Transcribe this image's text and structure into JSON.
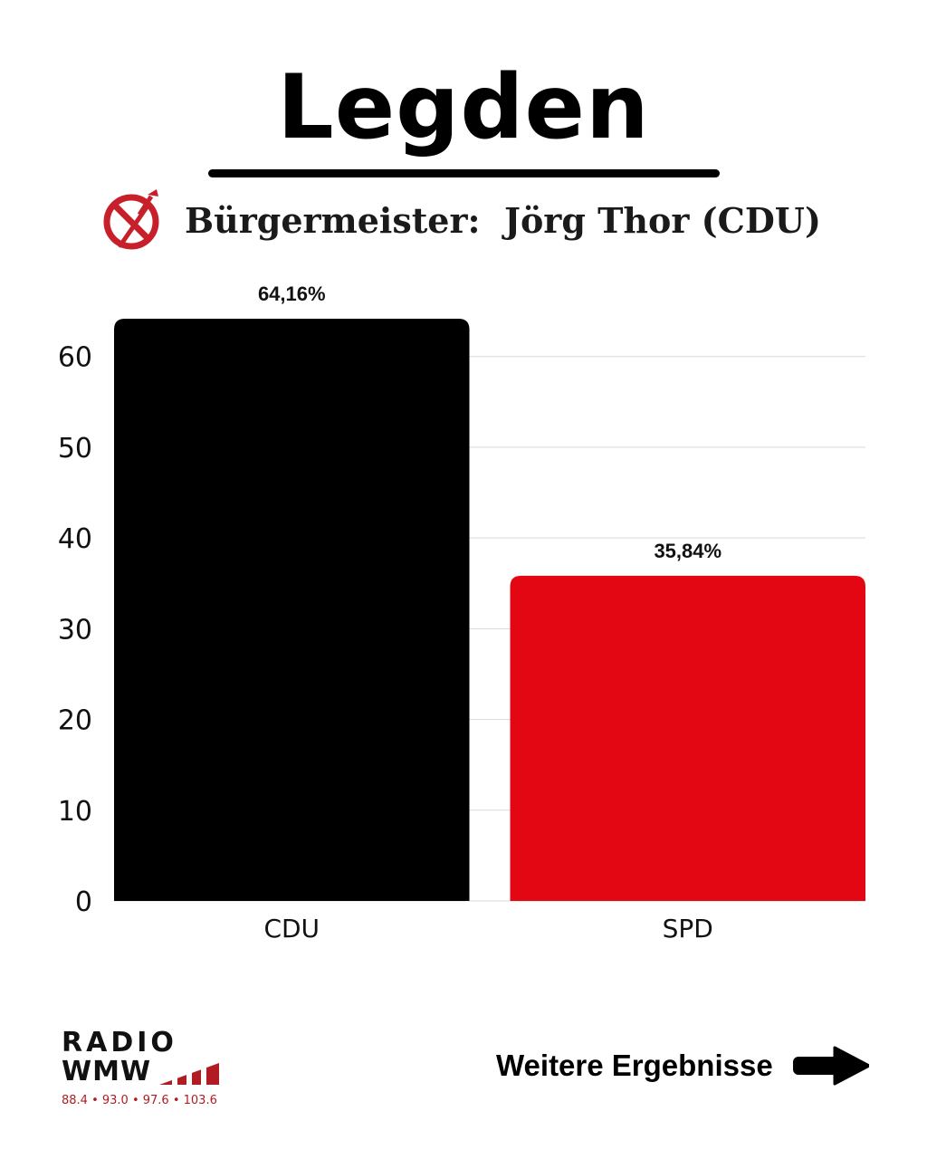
{
  "header": {
    "title": "Legden",
    "subtitle": "Bürgermeister:  Jörg Thor (CDU)",
    "ballot_icon": "ballot-cross-icon"
  },
  "chart_data": {
    "type": "bar",
    "title": "",
    "xlabel": "",
    "ylabel": "",
    "categories": [
      "CDU",
      "SPD"
    ],
    "values": [
      64.16,
      35.84
    ],
    "value_labels": [
      "64,16%",
      "35,84%"
    ],
    "colors": [
      "#000000",
      "#e30613"
    ],
    "ylim": [
      0,
      64.16
    ],
    "yticks": [
      0,
      10,
      20,
      30,
      40,
      50,
      60
    ],
    "grid": true,
    "legend": "none"
  },
  "footer": {
    "logo": {
      "line1": "RADIO",
      "line2": "WMW",
      "frequencies": "88.4 • 93.0 • 97.6 • 103.6",
      "accent_color": "#b01c22"
    },
    "more_results": {
      "label": "Weitere Ergebnisse",
      "icon": "arrow-right-icon"
    }
  }
}
